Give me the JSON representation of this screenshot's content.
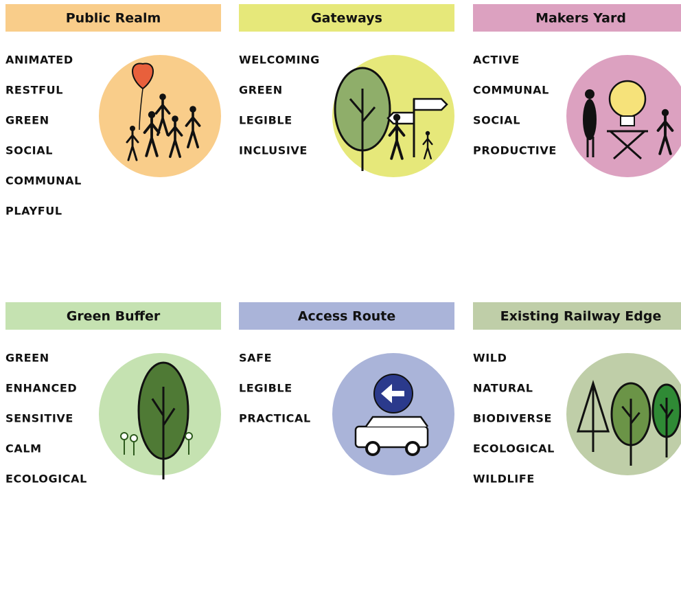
{
  "panels": [
    {
      "title": "Public Realm",
      "color": "#f9cd8a",
      "words": [
        "ANIMATED",
        "RESTFUL",
        "GREEN",
        "SOCIAL",
        "COMMUNAL",
        "PLAYFUL"
      ]
    },
    {
      "title": "Gateways",
      "color": "#e6e87a",
      "words": [
        "WELCOMING",
        "GREEN",
        "LEGIBLE",
        "INCLUSIVE"
      ]
    },
    {
      "title": "Makers Yard",
      "color": "#dca1c0",
      "words": [
        "ACTIVE",
        "COMMUNAL",
        "SOCIAL",
        "PRODUCTIVE"
      ]
    },
    {
      "title": "Green Buffer",
      "color": "#c5e2b1",
      "words": [
        "GREEN",
        "ENHANCED",
        "SENSITIVE",
        "CALM",
        "ECOLOGICAL"
      ]
    },
    {
      "title": "Access Route",
      "color": "#aab4d9",
      "words": [
        "SAFE",
        "LEGIBLE",
        "PRACTICAL"
      ]
    },
    {
      "title": "Existing Railway Edge",
      "color": "#bfcea8",
      "words": [
        "WILD",
        "NATURAL",
        "BIODIVERSE",
        "ECOLOGICAL",
        "WILDLIFE"
      ]
    }
  ]
}
